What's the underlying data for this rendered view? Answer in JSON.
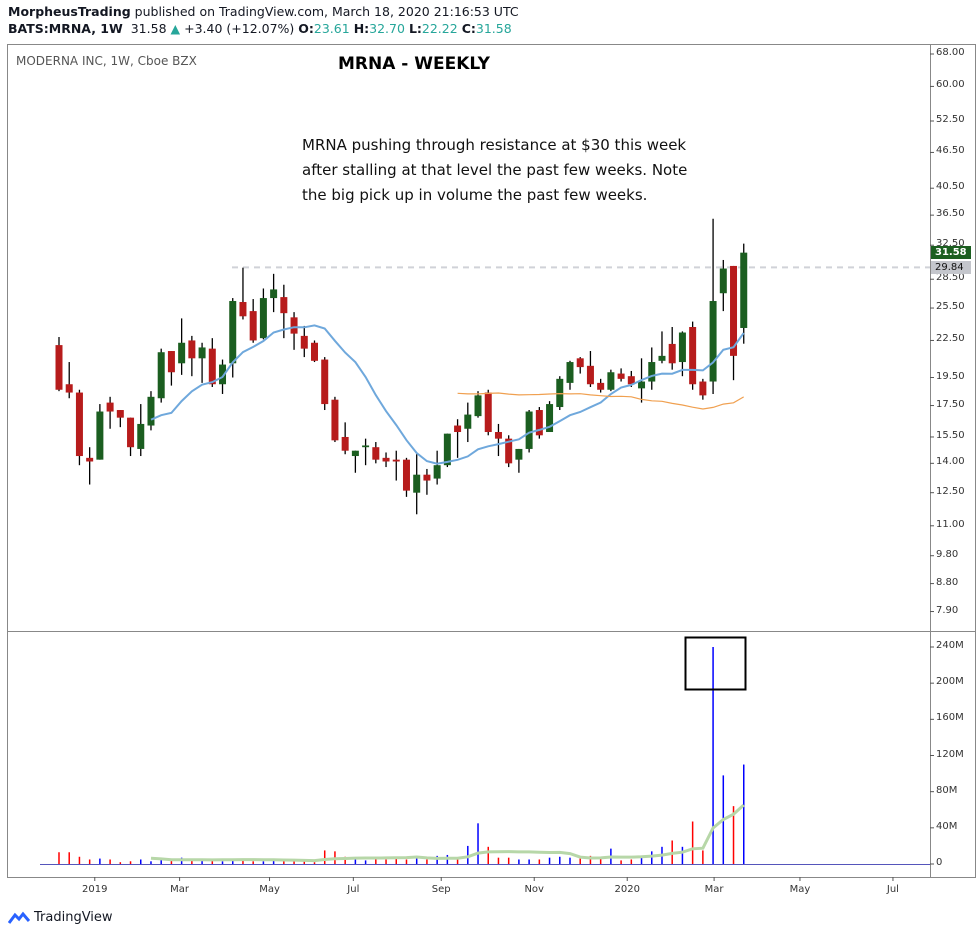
{
  "header": {
    "author": "MorpheusTrading",
    "published": "published on TradingView.com, March 18, 2020 21:16:53 UTC",
    "symbol": "BATS:MRNA, 1W",
    "last": "31.58",
    "change": "+3.40 (+12.07%)",
    "o_label": "O:",
    "o": "23.61",
    "h_label": "H:",
    "h": "32.70",
    "l_label": "L:",
    "l": "22.22",
    "c_label": "C:",
    "c": "31.58"
  },
  "chart": {
    "symbol_line": "MODERNA INC, 1W, Cboe BZX",
    "title": "MRNA - WEEKLY",
    "note": [
      "MRNA pushing through resistance at $30 this week",
      "after stalling at that level the past few weeks.  Note",
      "the big pick up in volume the past few weeks."
    ],
    "last_price_label": "31.58",
    "resistance_label": "29.84",
    "resistance": 29.84,
    "colors": {
      "up": "#1b5e20",
      "down": "#b71c1c",
      "ma_fast": "#6fa8dc",
      "ma_slow": "#f0a050",
      "vol_up": "#0000ff",
      "vol_down": "#ff0000",
      "vol_ma": "#b7d7a8"
    },
    "price_ticks": [
      "68.00",
      "60.00",
      "52.50",
      "46.50",
      "40.50",
      "36.50",
      "32.50",
      "28.50",
      "25.50",
      "22.50",
      "19.50",
      "17.50",
      "15.50",
      "14.00",
      "12.50",
      "11.00",
      "9.80",
      "8.80",
      "7.90"
    ],
    "volume_ticks": [
      "240M",
      "200M",
      "160M",
      "120M",
      "80M",
      "40M",
      "0"
    ],
    "x_ticks": [
      "2019",
      "Mar",
      "May",
      "Jul",
      "Sep",
      "Nov",
      "2020",
      "Mar",
      "May",
      "Jul"
    ]
  },
  "chart_data": {
    "type": "candlestick",
    "interval": "1W",
    "ohlc": [
      [
        22.1,
        22.8,
        18.5,
        18.6
      ],
      [
        19.0,
        20.7,
        18.0,
        18.4
      ],
      [
        18.4,
        18.6,
        13.9,
        14.4
      ],
      [
        14.3,
        14.9,
        12.9,
        14.1
      ],
      [
        14.2,
        17.6,
        14.2,
        17.1
      ],
      [
        17.7,
        18.1,
        16.0,
        17.1
      ],
      [
        17.2,
        17.2,
        16.1,
        16.7
      ],
      [
        16.7,
        16.7,
        14.4,
        14.9
      ],
      [
        14.8,
        17.6,
        14.4,
        16.3
      ],
      [
        16.2,
        18.5,
        15.9,
        18.1
      ],
      [
        18.0,
        21.8,
        17.7,
        21.5
      ],
      [
        21.6,
        21.6,
        18.9,
        19.9
      ],
      [
        20.6,
        24.5,
        19.7,
        22.3
      ],
      [
        22.5,
        22.9,
        19.6,
        21.0
      ],
      [
        21.0,
        22.3,
        19.1,
        21.9
      ],
      [
        21.8,
        22.7,
        18.8,
        19.0
      ],
      [
        19.0,
        20.9,
        18.3,
        20.5
      ],
      [
        20.6,
        26.5,
        19.5,
        26.2
      ],
      [
        26.1,
        29.8,
        24.4,
        24.7
      ],
      [
        25.2,
        26.4,
        22.3,
        22.5
      ],
      [
        22.7,
        27.5,
        22.6,
        26.5
      ],
      [
        26.5,
        29.1,
        25.1,
        27.4
      ],
      [
        26.6,
        27.9,
        22.7,
        25.0
      ],
      [
        24.6,
        25.1,
        21.7,
        23.1
      ],
      [
        22.9,
        23.8,
        21.1,
        21.8
      ],
      [
        22.3,
        22.5,
        20.7,
        20.8
      ],
      [
        20.9,
        21.1,
        17.2,
        17.6
      ],
      [
        17.9,
        18.1,
        15.2,
        15.3
      ],
      [
        15.5,
        16.4,
        14.5,
        14.7
      ],
      [
        14.4,
        14.7,
        13.5,
        14.7
      ],
      [
        14.9,
        15.4,
        13.9,
        15.0
      ],
      [
        14.9,
        15.2,
        14.0,
        14.2
      ],
      [
        14.3,
        14.6,
        13.8,
        14.1
      ],
      [
        14.2,
        14.7,
        13.1,
        14.1
      ],
      [
        14.2,
        14.3,
        12.3,
        12.6
      ],
      [
        12.5,
        14.5,
        11.5,
        13.4
      ],
      [
        13.4,
        13.7,
        12.4,
        13.1
      ],
      [
        13.2,
        14.7,
        12.9,
        13.9
      ],
      [
        13.9,
        15.7,
        13.8,
        15.7
      ],
      [
        16.2,
        16.6,
        14.3,
        15.8
      ],
      [
        16.0,
        17.7,
        15.2,
        16.9
      ],
      [
        16.8,
        18.5,
        16.7,
        18.2
      ],
      [
        18.4,
        18.6,
        15.6,
        15.8
      ],
      [
        15.8,
        16.3,
        14.4,
        15.4
      ],
      [
        15.4,
        15.6,
        13.8,
        14.0
      ],
      [
        14.2,
        14.8,
        13.5,
        14.8
      ],
      [
        14.8,
        17.2,
        14.6,
        17.1
      ],
      [
        17.2,
        17.4,
        15.4,
        15.6
      ],
      [
        15.8,
        17.8,
        15.8,
        17.6
      ],
      [
        17.4,
        19.6,
        17.2,
        19.4
      ],
      [
        19.1,
        20.8,
        18.6,
        20.7
      ],
      [
        21.0,
        21.1,
        19.8,
        20.3
      ],
      [
        20.4,
        21.6,
        18.8,
        19.0
      ],
      [
        19.1,
        19.4,
        18.4,
        18.6
      ],
      [
        18.6,
        20.1,
        18.5,
        19.9
      ],
      [
        19.8,
        20.2,
        19.2,
        19.4
      ],
      [
        19.6,
        20.0,
        18.8,
        19.0
      ],
      [
        18.7,
        21.0,
        17.7,
        19.2
      ],
      [
        19.2,
        21.9,
        18.6,
        20.7
      ],
      [
        20.8,
        23.3,
        20.6,
        21.2
      ],
      [
        22.2,
        23.7,
        20.1,
        20.6
      ],
      [
        20.7,
        23.3,
        19.6,
        23.2
      ],
      [
        23.7,
        24.2,
        18.6,
        19.0
      ],
      [
        19.2,
        19.4,
        17.9,
        18.2
      ],
      [
        19.2,
        36.0,
        18.3,
        26.2
      ],
      [
        27.0,
        30.7,
        25.2,
        29.7
      ],
      [
        30.0,
        30.0,
        19.3,
        21.2
      ],
      [
        23.61,
        32.7,
        22.22,
        31.58
      ]
    ],
    "volume_millions": [
      13,
      13,
      8,
      5,
      6,
      5,
      2,
      3,
      5,
      3,
      6,
      4,
      7,
      5,
      6,
      4,
      3,
      5,
      6,
      3,
      3,
      5,
      4,
      4,
      3,
      2,
      15,
      14,
      8,
      7,
      4,
      5,
      5,
      6,
      5,
      8,
      5,
      9,
      10,
      7,
      20,
      45,
      19,
      7,
      7,
      5,
      5,
      5,
      7,
      8,
      7,
      6,
      9,
      8,
      17,
      4,
      5,
      9,
      14,
      19,
      26,
      19,
      47,
      15,
      240,
      98,
      64,
      110
    ],
    "volume_up": [
      0,
      0,
      0,
      0,
      1,
      0,
      0,
      0,
      1,
      1,
      1,
      0,
      1,
      0,
      1,
      0,
      1,
      1,
      0,
      0,
      1,
      1,
      0,
      0,
      0,
      0,
      0,
      0,
      0,
      1,
      1,
      0,
      0,
      0,
      0,
      1,
      0,
      1,
      1,
      0,
      1,
      1,
      0,
      0,
      0,
      1,
      1,
      0,
      1,
      1,
      1,
      0,
      0,
      0,
      1,
      0,
      0,
      1,
      1,
      1,
      0,
      1,
      0,
      0,
      1,
      1,
      0,
      1
    ],
    "ma_fast_period": 10,
    "ma_slow_period": 40,
    "vol_ma_period": 10,
    "price_scale": "log",
    "ylim": [
      7.9,
      68
    ],
    "volume_ylim": [
      0,
      240
    ]
  },
  "footer": {
    "brand": "TradingView"
  }
}
